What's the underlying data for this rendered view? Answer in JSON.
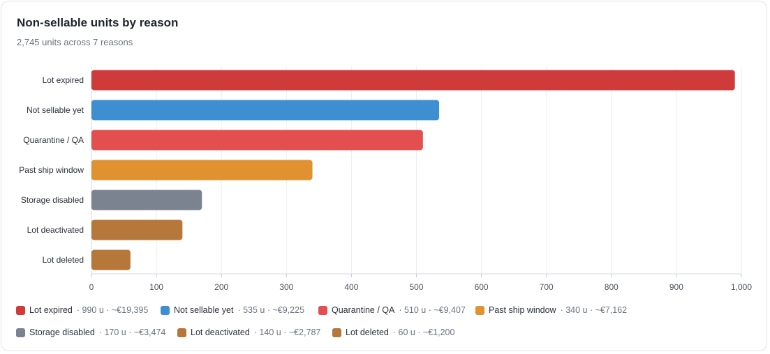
{
  "header": {
    "title": "Non-sellable units by reason",
    "subtitle": "2,745 units across 7 reasons"
  },
  "chart_data": {
    "type": "bar",
    "orientation": "horizontal",
    "title": "Non-sellable units by reason",
    "subtitle": "2,745 units across 7 reasons",
    "xlabel": "",
    "ylabel": "",
    "xlim": [
      0,
      1000
    ],
    "xticks": [
      0,
      100,
      200,
      300,
      400,
      500,
      600,
      700,
      800,
      900,
      1000
    ],
    "xtick_labels": [
      "0",
      "100",
      "200",
      "300",
      "400",
      "500",
      "600",
      "700",
      "800",
      "900",
      "1,000"
    ],
    "grid": true,
    "legend_position": "bottom",
    "categories": [
      "Lot expired",
      "Not sellable yet",
      "Quarantine / QA",
      "Past ship window",
      "Storage disabled",
      "Lot deactivated",
      "Lot deleted"
    ],
    "values": [
      990,
      535,
      510,
      340,
      170,
      140,
      60
    ],
    "colors": [
      "#cf3b3b",
      "#3d8fd1",
      "#e34f4f",
      "#e09230",
      "#7b8390",
      "#b5773a",
      "#b5773a"
    ],
    "legend": [
      {
        "label": "Lot expired",
        "detail": "· 990 u · ~€19,395"
      },
      {
        "label": "Not sellable yet",
        "detail": "· 535 u · ~€9,225"
      },
      {
        "label": "Quarantine / QA",
        "detail": "· 510 u · ~€9,407"
      },
      {
        "label": "Past ship window",
        "detail": "· 340 u · ~€7,162"
      },
      {
        "label": "Storage disabled",
        "detail": "· 170 u · ~€3,474"
      },
      {
        "label": "Lot deactivated",
        "detail": "· 140 u · ~€2,787"
      },
      {
        "label": "Lot deleted",
        "detail": "· 60 u · ~€1,200"
      }
    ]
  }
}
